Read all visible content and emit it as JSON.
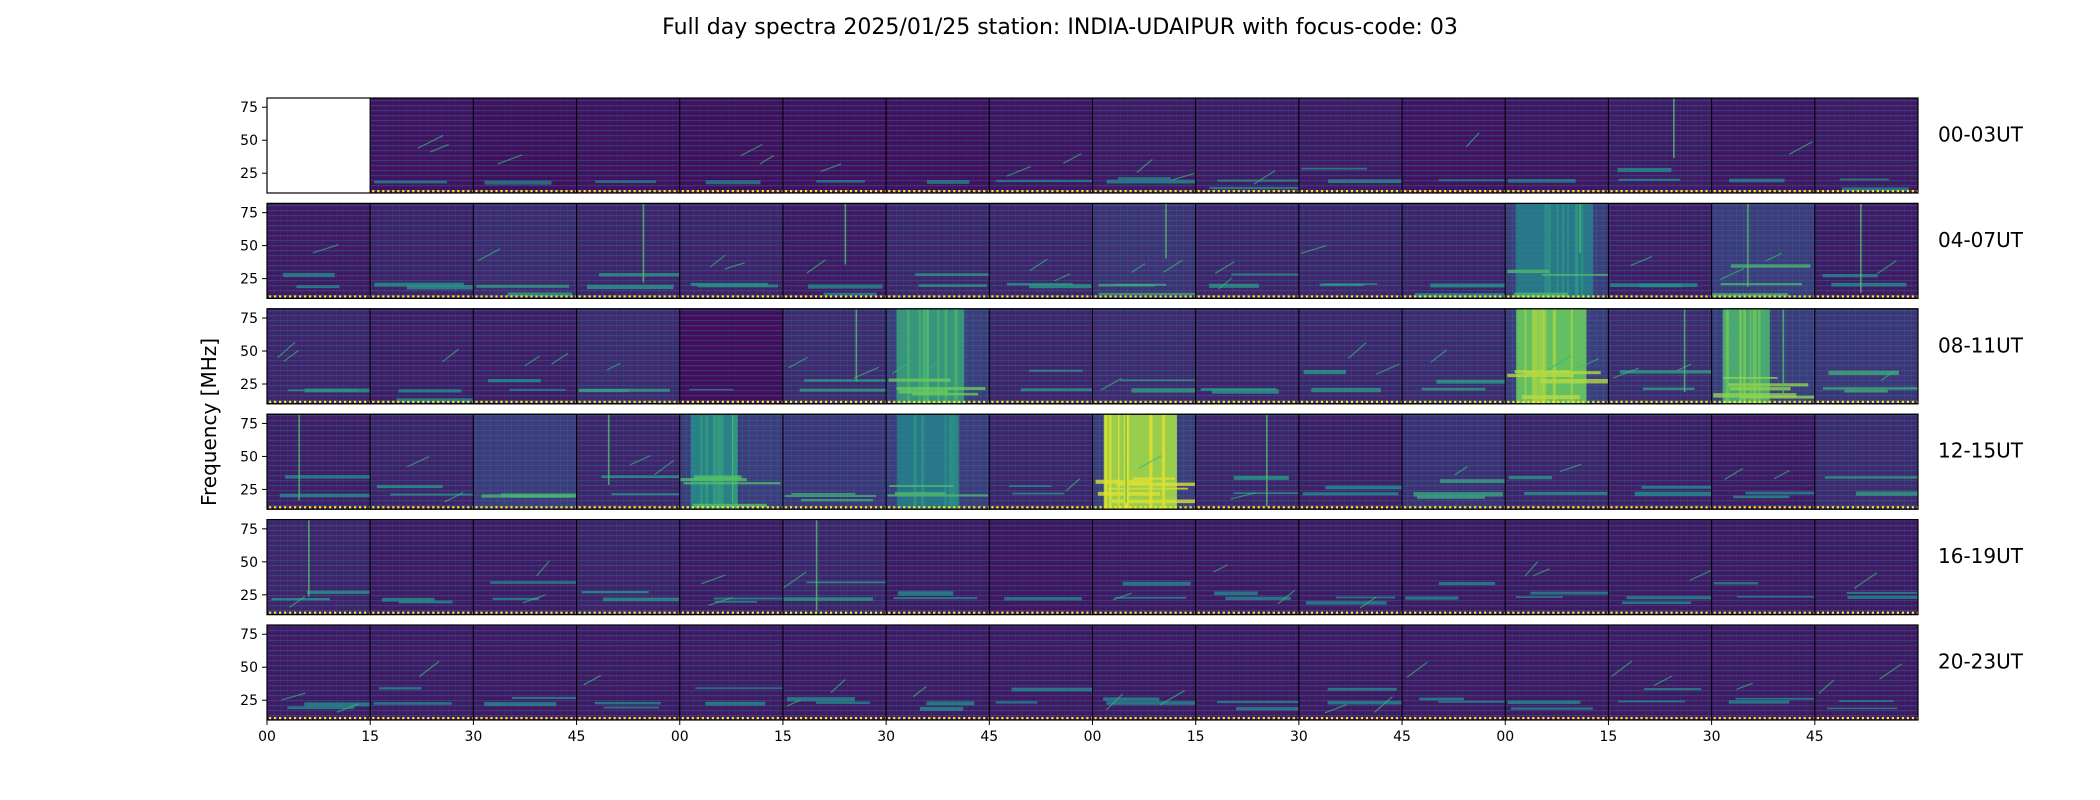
{
  "chart_data": {
    "type": "heatmap",
    "title": "Full day spectra 2025/01/25 station: INDIA-UDAIPUR with focus-code: 03",
    "ylabel": "Frequency [MHz]",
    "ylim": [
      10,
      82
    ],
    "yticks": [
      "75",
      "50",
      "25"
    ],
    "ytick_values": [
      75,
      50,
      25
    ],
    "xticks": [
      "00",
      "15",
      "30",
      "45",
      "00",
      "15",
      "30",
      "45",
      "00",
      "15",
      "30",
      "45",
      "00",
      "15",
      "30",
      "45"
    ],
    "colormap": [
      "#440154",
      "#3b528b",
      "#21918c",
      "#5ec962",
      "#fde725"
    ],
    "rows": [
      {
        "label": "00-03UT",
        "intensity": [
          null,
          0.15,
          0.12,
          0.14,
          0.12,
          0.13,
          0.13,
          0.16,
          0.2,
          0.22,
          0.2,
          0.15,
          0.18,
          0.22,
          0.18,
          0.2
        ],
        "feature": [
          0,
          1,
          1,
          1,
          1,
          2,
          1,
          2,
          3,
          2,
          2,
          1,
          2,
          4,
          2,
          2
        ]
      },
      {
        "label": "04-07UT",
        "intensity": [
          0.2,
          0.28,
          0.35,
          0.3,
          0.28,
          0.2,
          0.32,
          0.3,
          0.42,
          0.3,
          0.32,
          0.28,
          0.55,
          0.25,
          0.5,
          0.22
        ],
        "feature": [
          2,
          3,
          3,
          4,
          3,
          4,
          4,
          3,
          5,
          3,
          3,
          2,
          6,
          2,
          7,
          4
        ]
      },
      {
        "label": "08-11UT",
        "intensity": [
          0.3,
          0.25,
          0.25,
          0.35,
          0.1,
          0.35,
          0.7,
          0.3,
          0.35,
          0.3,
          0.32,
          0.35,
          0.9,
          0.35,
          0.8,
          0.45
        ],
        "feature": [
          3,
          3,
          3,
          4,
          1,
          4,
          8,
          3,
          3,
          3,
          3,
          5,
          9,
          4,
          8,
          6
        ]
      },
      {
        "label": "12-15UT",
        "intensity": [
          0.25,
          0.28,
          0.5,
          0.3,
          0.6,
          0.45,
          0.55,
          0.3,
          1.0,
          0.3,
          0.25,
          0.4,
          0.3,
          0.25,
          0.2,
          0.35
        ],
        "feature": [
          5,
          3,
          6,
          5,
          8,
          3,
          4,
          3,
          10,
          5,
          3,
          6,
          5,
          2,
          2,
          3
        ]
      },
      {
        "label": "16-19UT",
        "intensity": [
          0.3,
          0.22,
          0.22,
          0.28,
          0.22,
          0.3,
          0.22,
          0.18,
          0.2,
          0.2,
          0.22,
          0.2,
          0.2,
          0.2,
          0.2,
          0.22
        ],
        "feature": [
          5,
          3,
          3,
          3,
          5,
          5,
          3,
          2,
          2,
          2,
          3,
          2,
          2,
          2,
          2,
          2
        ]
      },
      {
        "label": "20-23UT",
        "intensity": [
          0.22,
          0.22,
          0.2,
          0.2,
          0.22,
          0.2,
          0.22,
          0.2,
          0.2,
          0.2,
          0.2,
          0.2,
          0.2,
          0.2,
          0.2,
          0.2
        ],
        "feature": [
          3,
          2,
          2,
          2,
          3,
          2,
          2,
          2,
          3,
          2,
          2,
          2,
          2,
          2,
          2,
          2
        ]
      }
    ]
  }
}
